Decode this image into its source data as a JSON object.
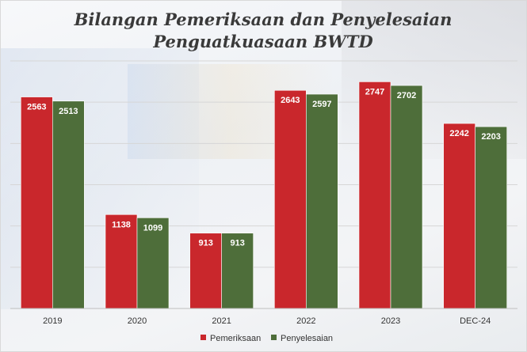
{
  "colors": {
    "pemeriksaan": "#c9272c",
    "penyelesaian": "#4e6e3a",
    "gridline": "#d6d6d6",
    "axis": "#bfbfbf"
  },
  "chart_data": {
    "type": "bar",
    "title_lines": [
      "Bilangan Pemeriksaan dan Penyelesaian",
      "Penguatkuasaan BWTD"
    ],
    "categories": [
      "2019",
      "2020",
      "2021",
      "2022",
      "2023",
      "DEC-24"
    ],
    "series": [
      {
        "name": "Pemeriksaan",
        "values": [
          2563,
          1138,
          913,
          2643,
          2747,
          2242
        ]
      },
      {
        "name": "Penyelesaian",
        "values": [
          2513,
          1099,
          913,
          2597,
          2702,
          2203
        ]
      }
    ],
    "ylim": [
      0,
      3000
    ],
    "grid": true,
    "data_labels": true,
    "legend_position": "bottom"
  }
}
